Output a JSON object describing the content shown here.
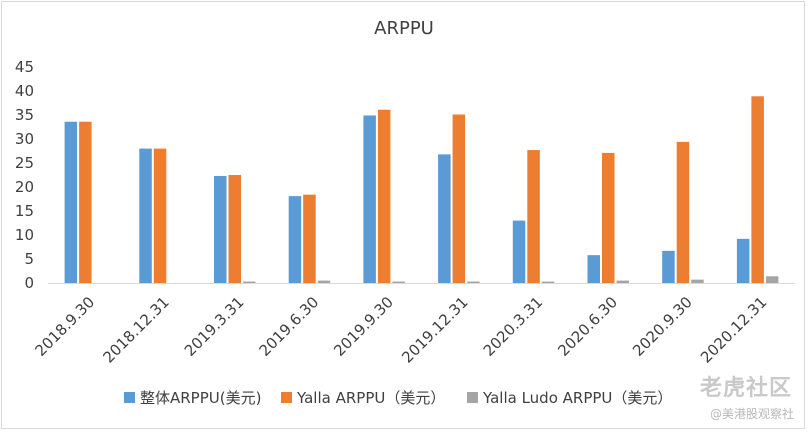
{
  "chart_data": {
    "type": "bar",
    "title": "ARPPU",
    "categories": [
      "2018.9.30",
      "2018.12.31",
      "2019.3.31",
      "2019.6.30",
      "2019.9.30",
      "2019.12.31",
      "2020.3.31",
      "2020.6.30",
      "2020.9.30",
      "2020.12.31"
    ],
    "series": [
      {
        "name": "整体ARPPU(美元)",
        "color": "#5b9bd5",
        "values": [
          33.6,
          28.0,
          22.3,
          18.1,
          34.9,
          26.8,
          13.0,
          5.8,
          6.7,
          9.2
        ]
      },
      {
        "name": "Yalla ARPPU（美元）",
        "color": "#ed7d31",
        "values": [
          33.6,
          28.0,
          22.5,
          18.4,
          36.1,
          35.1,
          27.7,
          27.1,
          29.4,
          38.9
        ]
      },
      {
        "name": "Yalla Ludo ARPPU（美元）",
        "color": "#a5a5a5",
        "values": [
          0,
          0,
          0.3,
          0.5,
          0.3,
          0.3,
          0.3,
          0.5,
          0.7,
          1.4
        ]
      }
    ],
    "yticks": [
      0,
      5,
      10,
      15,
      20,
      25,
      30,
      35,
      40,
      45
    ],
    "ylim": [
      0,
      45
    ],
    "grid": false,
    "legend_position": "bottom"
  },
  "watermark": {
    "logo": "老虎社区",
    "sub": "@美港股观察社"
  }
}
